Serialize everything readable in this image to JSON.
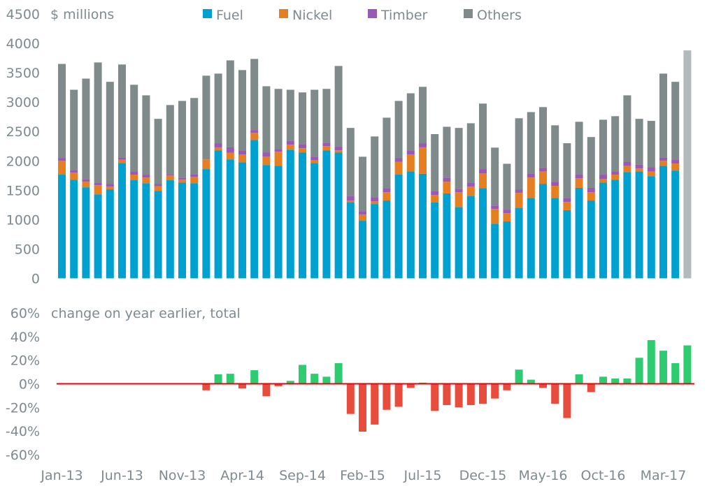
{
  "chart_data": [
    {
      "type": "bar",
      "stacked": true,
      "title": "",
      "unit_label": "$ millions",
      "xlabel": "",
      "ylabel": "$ millions",
      "ylim": [
        0,
        4500
      ],
      "yticks": [
        0,
        500,
        1000,
        1500,
        2000,
        2500,
        3000,
        3500,
        4000,
        4500
      ],
      "grid": false,
      "legend_position": "top",
      "colors": {
        "Fuel": "#00a1d0",
        "Nickel": "#e67e22",
        "Timber": "#9b59b6",
        "Others": "#7f8a8a",
        "Total": "#b3babc"
      },
      "categories": [
        "Jan-13",
        "Feb-13",
        "Mar-13",
        "Apr-13",
        "May-13",
        "Jun-13",
        "Jul-13",
        "Aug-13",
        "Sep-13",
        "Oct-13",
        "Nov-13",
        "Dec-13",
        "Jan-14",
        "Feb-14",
        "Mar-14",
        "Apr-14",
        "May-14",
        "Jun-14",
        "Jul-14",
        "Aug-14",
        "Sep-14",
        "Oct-14",
        "Nov-14",
        "Dec-14",
        "Jan-15",
        "Feb-15",
        "Mar-15",
        "Apr-15",
        "May-15",
        "Jun-15",
        "Jul-15",
        "Aug-15",
        "Sep-15",
        "Oct-15",
        "Nov-15",
        "Dec-15",
        "Jan-16",
        "Feb-16",
        "Mar-16",
        "Apr-16",
        "May-16",
        "Jun-16",
        "Jul-16",
        "Aug-16",
        "Sep-16",
        "Oct-16",
        "Nov-16",
        "Dec-16",
        "Jan-17",
        "Feb-17",
        "Mar-17",
        "Apr-17",
        "May-17"
      ],
      "xtick_labels": [
        "Jan-13",
        "Jun-13",
        "Nov-13",
        "Apr-14",
        "Sep-14",
        "Feb-15",
        "Jul-15",
        "Dec-15",
        "May-16",
        "Oct-16",
        "Mar-17"
      ],
      "series": [
        {
          "name": "Fuel",
          "values": [
            1765,
            1680,
            1550,
            1430,
            1515,
            1965,
            1670,
            1620,
            1490,
            1670,
            1630,
            1620,
            1860,
            2180,
            2025,
            1975,
            2355,
            1930,
            1915,
            2190,
            2140,
            1965,
            2180,
            2140,
            1290,
            980,
            1265,
            1325,
            1765,
            1820,
            1780,
            1290,
            1445,
            1215,
            1405,
            1535,
            930,
            970,
            1195,
            1370,
            1610,
            1370,
            1160,
            1540,
            1325,
            1630,
            1680,
            1810,
            1820,
            1740,
            1915,
            1835,
            null
          ]
        },
        {
          "name": "Nickel",
          "values": [
            235,
            120,
            95,
            155,
            45,
            55,
            95,
            95,
            80,
            80,
            50,
            110,
            165,
            50,
            115,
            135,
            120,
            140,
            240,
            85,
            75,
            50,
            70,
            40,
            35,
            105,
            45,
            140,
            220,
            290,
            450,
            130,
            200,
            250,
            155,
            250,
            250,
            140,
            260,
            345,
            210,
            205,
            140,
            165,
            140,
            60,
            85,
            105,
            50,
            80,
            85,
            120,
            null
          ]
        },
        {
          "name": "Timber",
          "values": [
            50,
            45,
            45,
            45,
            50,
            40,
            55,
            50,
            40,
            25,
            35,
            45,
            10,
            70,
            90,
            70,
            50,
            70,
            45,
            70,
            70,
            55,
            60,
            70,
            80,
            60,
            70,
            70,
            60,
            70,
            70,
            70,
            70,
            60,
            70,
            75,
            60,
            60,
            60,
            70,
            60,
            70,
            70,
            70,
            75,
            75,
            55,
            75,
            70,
            75,
            60,
            70,
            null
          ]
        },
        {
          "name": "Others",
          "values": [
            1600,
            1365,
            1710,
            2045,
            1735,
            1580,
            1475,
            1350,
            1105,
            1175,
            1305,
            1295,
            1415,
            1185,
            1480,
            1365,
            1210,
            1130,
            1025,
            865,
            880,
            1140,
            915,
            1365,
            1155,
            925,
            1035,
            1200,
            975,
            970,
            960,
            965,
            865,
            1035,
            1010,
            1115,
            985,
            780,
            1210,
            1045,
            1035,
            960,
            930,
            890,
            865,
            935,
            940,
            1125,
            775,
            785,
            1425,
            1320,
            null
          ]
        },
        {
          "name": "Total",
          "values": [
            null,
            null,
            null,
            null,
            null,
            null,
            null,
            null,
            null,
            null,
            null,
            null,
            null,
            null,
            null,
            null,
            null,
            null,
            null,
            null,
            null,
            null,
            null,
            null,
            null,
            null,
            null,
            null,
            null,
            null,
            null,
            null,
            null,
            null,
            null,
            null,
            null,
            null,
            null,
            null,
            null,
            null,
            null,
            null,
            null,
            null,
            null,
            null,
            null,
            null,
            null,
            null,
            3880
          ]
        }
      ],
      "legend": [
        "Fuel",
        "Nickel",
        "Timber",
        "Others"
      ]
    },
    {
      "type": "bar",
      "title": "",
      "unit_label": "change on year earlier, total",
      "xlabel": "",
      "ylabel": "%",
      "ylim": [
        -60,
        60
      ],
      "yticks": [
        "-60%",
        "-40%",
        "-20%",
        "0%",
        "20%",
        "40%",
        "60%"
      ],
      "ytick_values": [
        -60,
        -40,
        -20,
        0,
        20,
        40,
        60
      ],
      "grid": false,
      "colors": {
        "positive": "#2ecc71",
        "negative": "#e74c3c",
        "zero_line": "#e8000b"
      },
      "categories": [
        "Jan-13",
        "Feb-13",
        "Mar-13",
        "Apr-13",
        "May-13",
        "Jun-13",
        "Jul-13",
        "Aug-13",
        "Sep-13",
        "Oct-13",
        "Nov-13",
        "Dec-13",
        "Jan-14",
        "Feb-14",
        "Mar-14",
        "Apr-14",
        "May-14",
        "Jun-14",
        "Jul-14",
        "Aug-14",
        "Sep-14",
        "Oct-14",
        "Nov-14",
        "Dec-14",
        "Jan-15",
        "Feb-15",
        "Mar-15",
        "Apr-15",
        "May-15",
        "Jun-15",
        "Jul-15",
        "Aug-15",
        "Sep-15",
        "Oct-15",
        "Nov-15",
        "Dec-15",
        "Jan-16",
        "Feb-16",
        "Mar-16",
        "Apr-16",
        "May-16",
        "Jun-16",
        "Jul-16",
        "Aug-16",
        "Sep-16",
        "Oct-16",
        "Nov-16",
        "Dec-16",
        "Jan-17",
        "Feb-17",
        "Mar-17",
        "Apr-17",
        "May-17"
      ],
      "values": [
        null,
        null,
        null,
        null,
        null,
        null,
        null,
        null,
        null,
        null,
        null,
        null,
        -5.5,
        8,
        8.5,
        -4,
        11.5,
        -10.5,
        -2,
        2.5,
        16,
        8.5,
        6,
        17.5,
        -25.5,
        -40.5,
        -34.5,
        -22,
        -19.5,
        -3.5,
        1,
        -23,
        -18,
        -20,
        -18,
        -17,
        -12.5,
        -5.5,
        12,
        3.5,
        -3.5,
        -17,
        -29,
        8,
        -7,
        6,
        4.5,
        4.5,
        22,
        37,
        28,
        17.5,
        32.5
      ]
    }
  ]
}
